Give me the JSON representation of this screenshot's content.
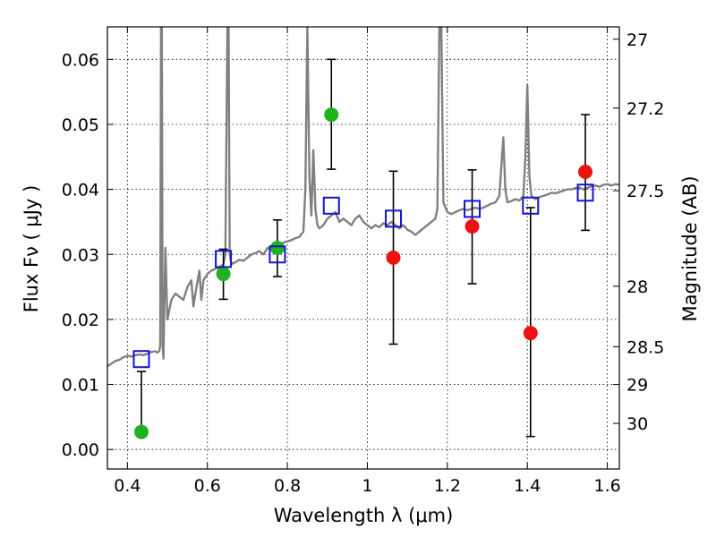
{
  "chart_data": {
    "type": "scatter",
    "xlabel": "Wavelength  λ (μm)",
    "ylabel": "Flux  Fν  ( μJy )",
    "ylabel_right": "Magnitude (AB)",
    "xlim": [
      0.35,
      1.63
    ],
    "ylim": [
      -0.003,
      0.065
    ],
    "xticks": [
      0.4,
      0.6,
      0.8,
      1.0,
      1.2,
      1.4,
      1.6
    ],
    "xtick_labels": [
      "0.4",
      "0.6",
      "0.8",
      "1",
      "1.2",
      "1.4",
      "1.6"
    ],
    "yticks": [
      0.0,
      0.01,
      0.02,
      0.03,
      0.04,
      0.05,
      0.06
    ],
    "ytick_labels": [
      "0.00",
      "0.01",
      "0.02",
      "0.03",
      "0.04",
      "0.05",
      "0.06"
    ],
    "right_ticks": [
      {
        "label": "27",
        "flux": 0.0631
      },
      {
        "label": "27.2",
        "flux": 0.0525
      },
      {
        "label": "27.5",
        "flux": 0.0398
      },
      {
        "label": "28",
        "flux": 0.0251
      },
      {
        "label": "28.5",
        "flux": 0.0158
      },
      {
        "label": "29",
        "flux": 0.01
      },
      {
        "label": "30",
        "flux": 0.004
      }
    ],
    "grid": true,
    "colors": {
      "model": "#808080",
      "green": "#1db31d",
      "red": "#ee1111",
      "box": "#1414cc",
      "error": "#000000"
    },
    "model_spectrum": [
      [
        0.35,
        0.0128
      ],
      [
        0.36,
        0.0132
      ],
      [
        0.37,
        0.0136
      ],
      [
        0.38,
        0.0138
      ],
      [
        0.39,
        0.0142
      ],
      [
        0.4,
        0.0144
      ],
      [
        0.41,
        0.0143
      ],
      [
        0.42,
        0.0145
      ],
      [
        0.43,
        0.0146
      ],
      [
        0.44,
        0.0145
      ],
      [
        0.45,
        0.0147
      ],
      [
        0.46,
        0.015
      ],
      [
        0.47,
        0.0151
      ],
      [
        0.475,
        0.0149
      ],
      [
        0.48,
        0.0152
      ],
      [
        0.482,
        0.016
      ],
      [
        0.484,
        0.065
      ],
      [
        0.486,
        0.065
      ],
      [
        0.488,
        0.016
      ],
      [
        0.49,
        0.014
      ],
      [
        0.495,
        0.031
      ],
      [
        0.5,
        0.02
      ],
      [
        0.51,
        0.023
      ],
      [
        0.52,
        0.024
      ],
      [
        0.53,
        0.0235
      ],
      [
        0.54,
        0.023
      ],
      [
        0.55,
        0.025
      ],
      [
        0.56,
        0.026
      ],
      [
        0.565,
        0.022
      ],
      [
        0.57,
        0.024
      ],
      [
        0.58,
        0.0275
      ],
      [
        0.585,
        0.023
      ],
      [
        0.59,
        0.026
      ],
      [
        0.6,
        0.027
      ],
      [
        0.61,
        0.0275
      ],
      [
        0.62,
        0.0278
      ],
      [
        0.63,
        0.028
      ],
      [
        0.64,
        0.0285
      ],
      [
        0.645,
        0.03
      ],
      [
        0.65,
        0.065
      ],
      [
        0.653,
        0.065
      ],
      [
        0.656,
        0.03
      ],
      [
        0.66,
        0.0285
      ],
      [
        0.67,
        0.0288
      ],
      [
        0.68,
        0.0292
      ],
      [
        0.69,
        0.029
      ],
      [
        0.7,
        0.0295
      ],
      [
        0.71,
        0.03
      ],
      [
        0.72,
        0.0302
      ],
      [
        0.73,
        0.0305
      ],
      [
        0.74,
        0.03
      ],
      [
        0.75,
        0.031
      ],
      [
        0.76,
        0.0308
      ],
      [
        0.77,
        0.0312
      ],
      [
        0.78,
        0.0315
      ],
      [
        0.79,
        0.0318
      ],
      [
        0.8,
        0.032
      ],
      [
        0.81,
        0.0322
      ],
      [
        0.82,
        0.0325
      ],
      [
        0.83,
        0.0327
      ],
      [
        0.84,
        0.0335
      ],
      [
        0.845,
        0.04
      ],
      [
        0.85,
        0.065
      ],
      [
        0.855,
        0.042
      ],
      [
        0.86,
        0.036
      ],
      [
        0.865,
        0.046
      ],
      [
        0.87,
        0.037
      ],
      [
        0.875,
        0.0345
      ],
      [
        0.88,
        0.034
      ],
      [
        0.89,
        0.0345
      ],
      [
        0.9,
        0.0355
      ],
      [
        0.91,
        0.036
      ],
      [
        0.92,
        0.0365
      ],
      [
        0.93,
        0.035
      ],
      [
        0.94,
        0.0355
      ],
      [
        0.95,
        0.035
      ],
      [
        0.96,
        0.0345
      ],
      [
        0.97,
        0.0355
      ],
      [
        0.98,
        0.036
      ],
      [
        0.99,
        0.035
      ],
      [
        1.0,
        0.0345
      ],
      [
        1.01,
        0.034
      ],
      [
        1.02,
        0.0345
      ],
      [
        1.03,
        0.0342
      ],
      [
        1.04,
        0.0348
      ],
      [
        1.05,
        0.0345
      ],
      [
        1.06,
        0.035
      ],
      [
        1.07,
        0.0345
      ],
      [
        1.08,
        0.034
      ],
      [
        1.09,
        0.0345
      ],
      [
        1.1,
        0.0338
      ],
      [
        1.11,
        0.0335
      ],
      [
        1.12,
        0.033
      ],
      [
        1.13,
        0.0335
      ],
      [
        1.14,
        0.034
      ],
      [
        1.15,
        0.0345
      ],
      [
        1.16,
        0.035
      ],
      [
        1.17,
        0.0355
      ],
      [
        1.175,
        0.037
      ],
      [
        1.18,
        0.065
      ],
      [
        1.185,
        0.065
      ],
      [
        1.19,
        0.038
      ],
      [
        1.2,
        0.0365
      ],
      [
        1.21,
        0.0362
      ],
      [
        1.22,
        0.0365
      ],
      [
        1.23,
        0.0368
      ],
      [
        1.24,
        0.037
      ],
      [
        1.25,
        0.0368
      ],
      [
        1.26,
        0.037
      ],
      [
        1.27,
        0.0372
      ],
      [
        1.28,
        0.037
      ],
      [
        1.29,
        0.0372
      ],
      [
        1.3,
        0.0375
      ],
      [
        1.31,
        0.0378
      ],
      [
        1.32,
        0.038
      ],
      [
        1.33,
        0.039
      ],
      [
        1.34,
        0.048
      ],
      [
        1.345,
        0.04
      ],
      [
        1.35,
        0.038
      ],
      [
        1.36,
        0.0382
      ],
      [
        1.37,
        0.0385
      ],
      [
        1.38,
        0.0383
      ],
      [
        1.39,
        0.039
      ],
      [
        1.395,
        0.045
      ],
      [
        1.4,
        0.056
      ],
      [
        1.405,
        0.042
      ],
      [
        1.41,
        0.039
      ],
      [
        1.42,
        0.0385
      ],
      [
        1.43,
        0.0388
      ],
      [
        1.44,
        0.039
      ],
      [
        1.45,
        0.0392
      ],
      [
        1.46,
        0.0395
      ],
      [
        1.47,
        0.0394
      ],
      [
        1.48,
        0.0396
      ],
      [
        1.49,
        0.0398
      ],
      [
        1.5,
        0.04
      ],
      [
        1.51,
        0.04
      ],
      [
        1.52,
        0.0402
      ],
      [
        1.53,
        0.0403
      ],
      [
        1.54,
        0.04
      ],
      [
        1.55,
        0.0402
      ],
      [
        1.56,
        0.0405
      ],
      [
        1.57,
        0.0406
      ],
      [
        1.58,
        0.0404
      ],
      [
        1.59,
        0.0407
      ],
      [
        1.6,
        0.0408
      ],
      [
        1.61,
        0.0406
      ],
      [
        1.62,
        0.0408
      ],
      [
        1.63,
        0.0407
      ]
    ],
    "series": [
      {
        "marker": "circle",
        "color_key": "green",
        "points": [
          {
            "x": 0.435,
            "y": 0.0027,
            "err_lo": 0.0032,
            "err_hi": 0.012
          },
          {
            "x": 0.64,
            "y": 0.027,
            "err_lo": 0.0231,
            "err_hi": 0.0308
          },
          {
            "x": 0.775,
            "y": 0.031,
            "err_lo": 0.0266,
            "err_hi": 0.0353
          },
          {
            "x": 0.91,
            "y": 0.0515,
            "err_lo": 0.0431,
            "err_hi": 0.06
          }
        ]
      },
      {
        "marker": "circle",
        "color_key": "red",
        "points": [
          {
            "x": 1.065,
            "y": 0.0295,
            "err_lo": 0.0162,
            "err_hi": 0.0428
          },
          {
            "x": 1.262,
            "y": 0.0343,
            "err_lo": 0.0255,
            "err_hi": 0.043
          },
          {
            "x": 1.408,
            "y": 0.0179,
            "err_lo": 0.002,
            "err_hi": 0.0372
          },
          {
            "x": 1.545,
            "y": 0.0427,
            "err_lo": 0.0337,
            "err_hi": 0.0515
          }
        ]
      },
      {
        "marker": "square",
        "color_key": "box",
        "points": [
          {
            "x": 0.435,
            "y": 0.0139
          },
          {
            "x": 0.64,
            "y": 0.0293
          },
          {
            "x": 0.775,
            "y": 0.03
          },
          {
            "x": 0.91,
            "y": 0.0375
          },
          {
            "x": 1.065,
            "y": 0.0355
          },
          {
            "x": 1.262,
            "y": 0.037
          },
          {
            "x": 1.408,
            "y": 0.0375
          },
          {
            "x": 1.545,
            "y": 0.0395
          }
        ]
      }
    ]
  }
}
